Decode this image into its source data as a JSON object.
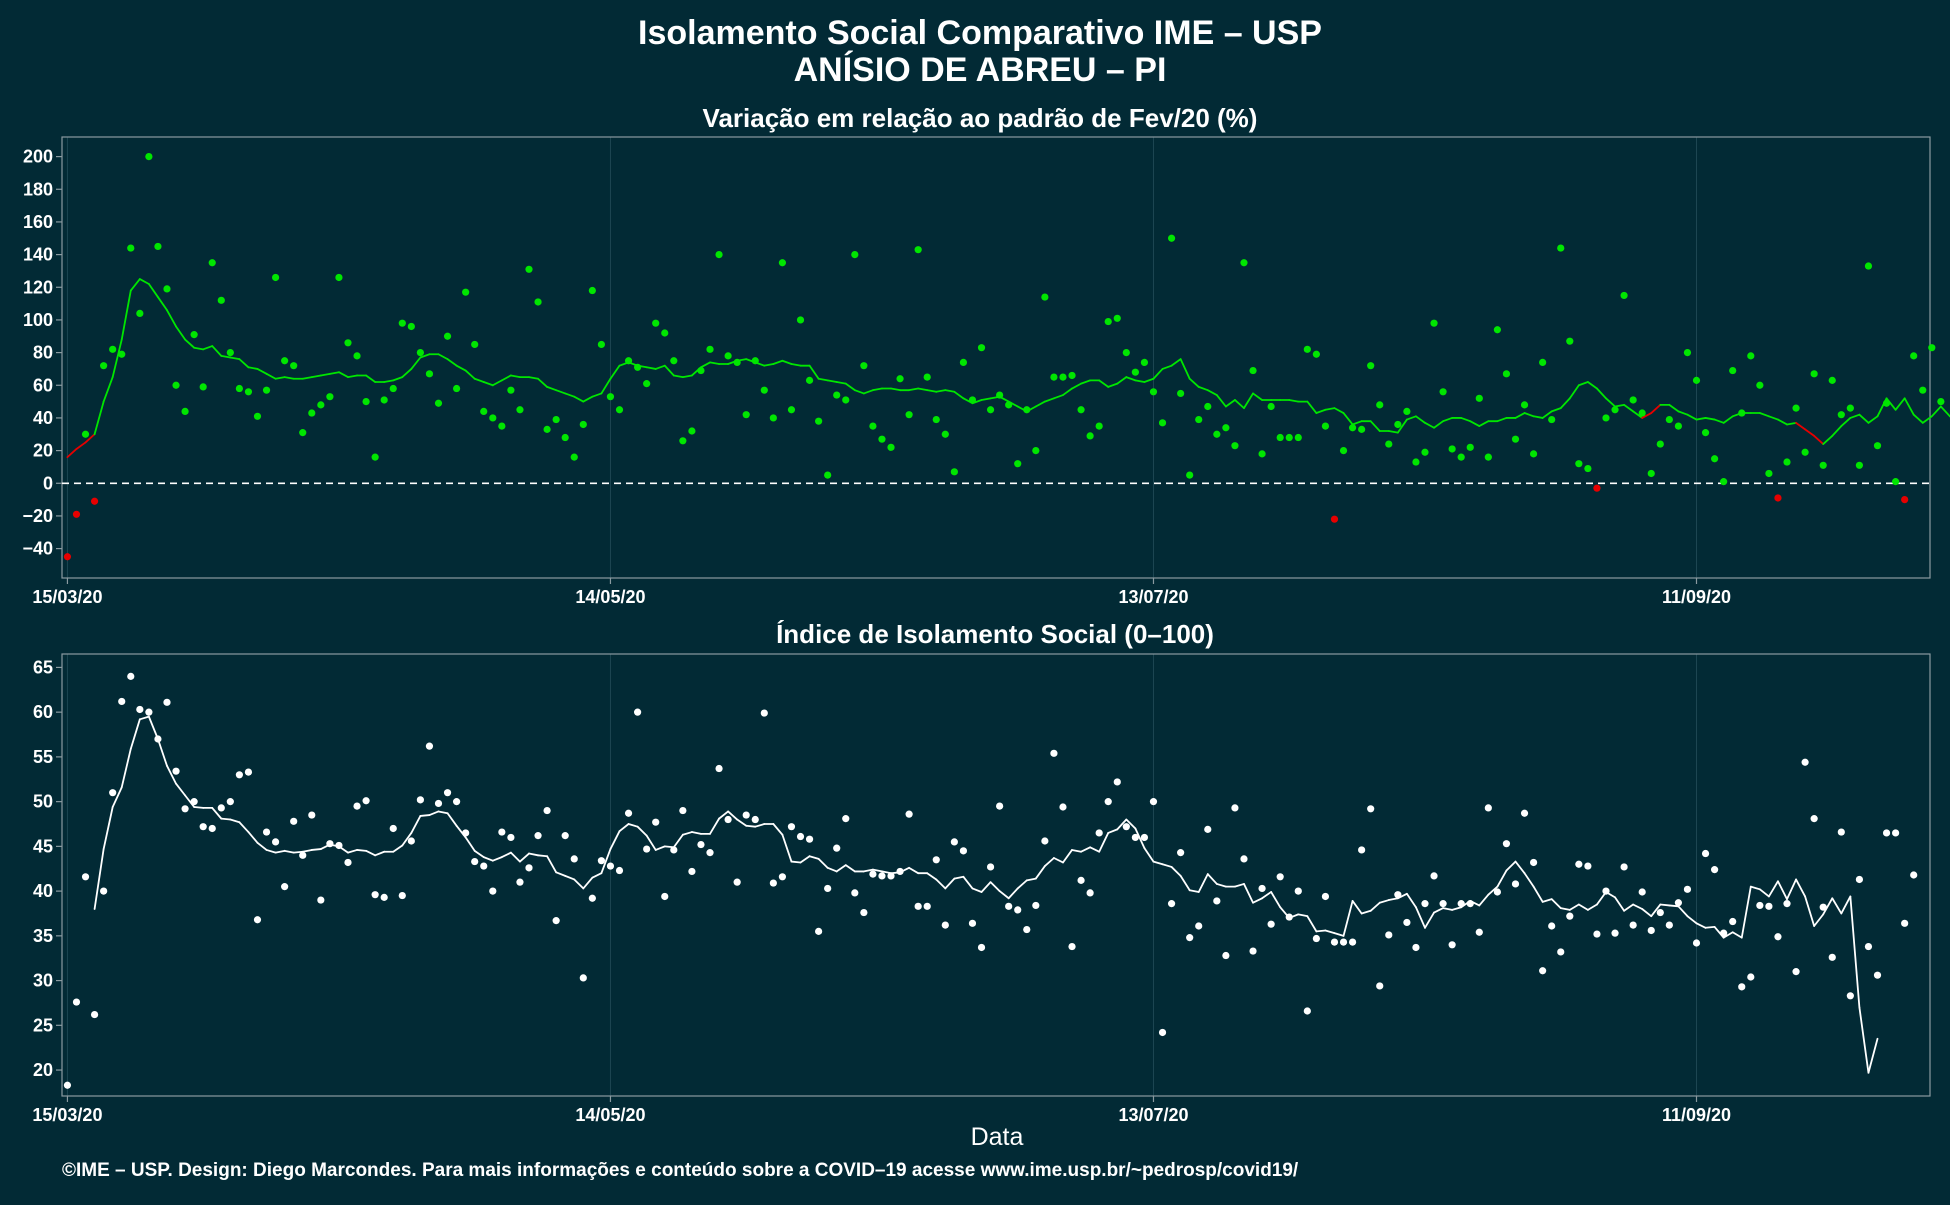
{
  "header": {
    "title_line1": "Isolamento Social Comparativo IME – USP",
    "title_line2": "ANÍSIO DE ABREU – PI"
  },
  "footer": {
    "credit": "©IME – USP. Design: Diego Marcondes. Para mais informações e conteúdo sobre a COVID–19 acesse www.ime.usp.br/~pedrosp/covid19/"
  },
  "colors": {
    "background": "#022a35",
    "panel_border": "#8a9aa0",
    "grid": "#1d4652",
    "positive": "#00e600",
    "negative": "#e60000",
    "index": "#ffffff"
  },
  "chart_data": [
    {
      "type": "scatter",
      "title": "Variação em relação ao padrão de Fev/20 (%)",
      "xlabel": "",
      "ylabel": "",
      "x_start": "15/03/20",
      "x_tick_labels": [
        "15/03/20",
        "14/05/20",
        "13/07/20",
        "11/09/20"
      ],
      "x_tick_day_offsets": [
        0,
        60,
        120,
        180
      ],
      "ylim": [
        -58,
        212
      ],
      "y_ticks": [
        -40,
        -20,
        0,
        20,
        40,
        60,
        80,
        100,
        120,
        140,
        160,
        180,
        200
      ],
      "reference_line": 0,
      "grid": true,
      "points": [
        -45,
        -19,
        30,
        -11,
        72,
        82,
        79,
        144,
        104,
        200,
        145,
        119,
        60,
        44,
        91,
        59,
        135,
        112,
        80,
        58,
        56,
        41,
        57,
        126,
        75,
        72,
        31,
        43,
        48,
        53,
        126,
        86,
        78,
        50,
        16,
        51,
        58,
        98,
        96,
        80,
        67,
        49,
        90,
        58,
        117,
        85,
        44,
        40,
        35,
        57,
        45,
        131,
        111,
        33,
        39,
        28,
        16,
        36,
        118,
        85,
        53,
        45,
        75,
        71,
        61,
        98,
        92,
        75,
        26,
        32,
        69,
        82,
        140,
        78,
        74,
        42,
        75,
        57,
        40,
        135,
        45,
        100,
        63,
        38,
        5,
        54,
        51,
        140,
        72,
        35,
        27,
        22,
        64,
        42,
        143,
        65,
        39,
        30,
        7,
        74,
        51,
        83,
        45,
        54,
        48,
        12,
        45,
        20,
        114,
        65,
        65,
        66,
        45,
        29,
        35,
        99,
        101,
        80,
        68,
        74,
        56,
        37,
        150,
        55,
        5,
        39,
        47,
        30,
        34,
        23,
        135,
        69,
        18,
        47,
        28,
        28,
        28,
        82,
        79,
        35,
        -22,
        20,
        34,
        33,
        72,
        48,
        24,
        36,
        44,
        13,
        19,
        98,
        56,
        21,
        16,
        22,
        52,
        16,
        94,
        67,
        27,
        48,
        18,
        74,
        39,
        144,
        87,
        12,
        9,
        -3,
        40,
        45,
        115,
        51,
        43,
        6,
        24,
        39,
        35,
        80,
        63,
        31,
        15,
        1,
        69,
        43,
        78,
        60,
        6,
        -9,
        13,
        46,
        19,
        67,
        11,
        63,
        42,
        46,
        11,
        133,
        23,
        49,
        1,
        -10,
        78,
        57,
        83,
        50
      ],
      "moving_average": [
        16,
        21,
        25,
        30,
        50,
        65,
        88,
        118,
        125,
        122,
        114,
        106,
        96,
        88,
        83,
        82,
        84,
        78,
        77,
        76,
        71,
        70,
        67,
        64,
        65,
        64,
        64,
        65,
        66,
        67,
        68,
        65,
        66,
        66,
        62,
        62,
        63,
        65,
        70,
        77,
        79,
        79,
        76,
        72,
        69,
        64,
        62,
        60,
        63,
        66,
        65,
        65,
        64,
        59,
        57,
        55,
        53,
        50,
        53,
        55,
        64,
        72,
        74,
        72,
        71,
        70,
        72,
        66,
        65,
        66,
        71,
        74,
        73,
        73,
        75,
        76,
        74,
        72,
        73,
        75,
        73,
        72,
        72,
        64,
        63,
        62,
        61,
        57,
        55,
        57,
        58,
        58,
        57,
        57,
        58,
        57,
        56,
        57,
        56,
        52,
        49,
        51,
        52,
        53,
        50,
        47,
        44,
        47,
        50,
        52,
        54,
        58,
        61,
        63,
        63,
        59,
        61,
        65,
        63,
        62,
        64,
        70,
        72,
        76,
        64,
        59,
        57,
        54,
        47,
        51,
        46,
        55,
        51,
        51,
        51,
        51,
        50,
        50,
        43,
        45,
        46,
        43,
        36,
        38,
        38,
        32,
        32,
        31,
        39,
        41,
        37,
        34,
        38,
        40,
        40,
        38,
        35,
        38,
        38,
        40,
        40,
        43,
        41,
        40,
        44,
        46,
        52,
        60,
        62,
        58,
        52,
        47,
        48,
        44,
        40,
        43,
        48,
        48,
        44,
        42,
        39,
        40,
        39,
        37,
        41,
        43,
        43,
        43,
        41,
        39,
        36,
        37,
        33,
        29,
        24,
        29,
        35,
        40,
        42,
        37,
        41,
        52,
        45,
        52,
        42,
        37,
        41,
        47,
        41,
        44
      ]
    },
    {
      "type": "scatter",
      "title": "Índice de Isolamento Social (0–100)",
      "xlabel": "Data",
      "ylabel": "",
      "x_start": "15/03/20",
      "x_tick_labels": [
        "15/03/20",
        "14/05/20",
        "13/07/20",
        "11/09/20"
      ],
      "x_tick_day_offsets": [
        0,
        60,
        120,
        180
      ],
      "ylim": [
        17.1,
        66.5
      ],
      "y_ticks": [
        20,
        25,
        30,
        35,
        40,
        45,
        50,
        55,
        60,
        65
      ],
      "grid": true,
      "points": [
        18.3,
        27.6,
        41.6,
        26.2,
        40.0,
        51.0,
        61.2,
        64.0,
        60.3,
        60.0,
        57.0,
        61.1,
        53.4,
        49.2,
        50.0,
        47.2,
        47.0,
        49.3,
        50.0,
        53.0,
        53.3,
        36.8,
        46.6,
        45.5,
        40.5,
        47.8,
        44.0,
        48.5,
        39.0,
        45.3,
        45.1,
        43.2,
        49.5,
        50.1,
        39.6,
        39.3,
        47.0,
        39.5,
        45.6,
        50.2,
        56.2,
        49.8,
        51.0,
        50.0,
        46.5,
        43.3,
        42.8,
        40.0,
        46.6,
        46.0,
        41.0,
        42.6,
        46.2,
        49.0,
        36.7,
        46.2,
        43.6,
        30.3,
        39.2,
        43.4,
        42.8,
        42.3,
        48.7,
        60.0,
        44.7,
        47.7,
        39.4,
        44.6,
        49.0,
        42.2,
        45.2,
        44.3,
        53.7,
        48.0,
        41.0,
        48.5,
        48.0,
        59.9,
        40.9,
        41.6,
        47.2,
        46.1,
        45.8,
        35.5,
        40.3,
        44.8,
        48.1,
        39.8,
        37.6,
        41.9,
        41.7,
        41.7,
        42.2,
        48.6,
        38.3,
        38.3,
        43.5,
        36.2,
        45.5,
        44.5,
        36.4,
        33.7,
        42.7,
        49.5,
        38.3,
        37.9,
        35.7,
        38.4,
        45.6,
        55.4,
        49.4,
        33.8,
        41.2,
        39.8,
        46.5,
        50.0,
        52.2,
        47.2,
        46.0,
        46.0,
        50.0,
        24.2,
        38.6,
        44.3,
        34.8,
        36.1,
        46.9,
        38.9,
        32.8,
        49.3,
        43.6,
        33.3,
        40.3,
        36.3,
        41.6,
        37.1,
        40.0,
        26.6,
        34.7,
        39.4,
        34.3,
        34.3,
        34.3,
        44.6,
        49.2,
        29.4,
        35.1,
        39.6,
        36.5,
        33.7,
        38.6,
        41.7,
        38.6,
        34.0,
        38.6,
        38.6,
        35.4,
        49.3,
        39.9,
        45.3,
        40.8,
        48.7,
        43.2,
        31.1,
        36.1,
        33.2,
        37.2,
        43.0,
        42.8,
        35.2,
        40.0,
        35.3,
        42.7,
        36.2,
        39.9,
        35.6,
        37.6,
        36.2,
        38.7,
        40.2,
        34.2,
        44.2,
        42.4,
        35.3,
        36.6,
        29.3,
        30.4,
        38.4,
        38.3,
        34.9,
        38.6,
        31.0,
        54.4,
        48.1,
        38.2,
        32.6,
        46.6,
        28.3,
        41.3,
        33.8,
        30.6,
        46.5,
        46.5,
        36.4,
        41.8
      ],
      "moving_average": [
        null,
        null,
        null,
        38.0,
        44.7,
        49.4,
        51.6,
        55.9,
        59.2,
        59.5,
        57.0,
        54.0,
        52.0,
        50.7,
        49.4,
        49.3,
        49.3,
        48.1,
        48.0,
        47.7,
        46.6,
        45.4,
        44.6,
        44.3,
        44.5,
        44.3,
        44.4,
        44.6,
        44.7,
        45.2,
        45.0,
        44.3,
        44.6,
        44.5,
        44.0,
        44.4,
        44.4,
        45.1,
        46.5,
        48.4,
        48.5,
        48.9,
        48.7,
        47.3,
        46.0,
        44.5,
        43.8,
        43.4,
        43.8,
        44.3,
        43.3,
        44.2,
        44.0,
        43.9,
        42.1,
        41.7,
        41.3,
        40.3,
        41.5,
        42.0,
        44.7,
        46.7,
        47.5,
        47.2,
        46.2,
        44.6,
        45.0,
        44.9,
        46.3,
        46.6,
        46.4,
        46.4,
        48.1,
        48.9,
        48.0,
        47.3,
        47.2,
        47.5,
        47.5,
        46.3,
        43.3,
        43.2,
        43.9,
        43.6,
        42.6,
        42.2,
        42.9,
        42.2,
        42.2,
        42.4,
        42.2,
        42.0,
        42.1,
        42.6,
        42.0,
        42.0,
        41.3,
        40.3,
        41.4,
        41.6,
        40.3,
        39.9,
        41.0,
        40.0,
        39.2,
        40.3,
        41.2,
        41.4,
        42.8,
        43.7,
        43.2,
        44.6,
        44.4,
        44.9,
        44.4,
        46.5,
        46.9,
        48.0,
        47.0,
        44.8,
        43.3,
        43.0,
        42.7,
        41.7,
        40.1,
        39.9,
        41.9,
        40.8,
        40.5,
        40.5,
        40.8,
        38.7,
        39.2,
        39.9,
        38.2,
        37.0,
        37.4,
        37.2,
        35.5,
        35.6,
        35.3,
        35.0,
        38.9,
        37.5,
        37.8,
        38.7,
        39.0,
        39.2,
        39.7,
        38.2,
        35.9,
        37.6,
        38.1,
        37.9,
        38.2,
        38.9,
        38.4,
        39.6,
        40.5,
        42.3,
        43.3,
        42.0,
        40.5,
        38.8,
        39.1,
        38.1,
        37.9,
        38.5,
        37.9,
        38.5,
        39.9,
        39.3,
        37.8,
        38.5,
        38.0,
        37.2,
        38.5,
        38.4,
        38.3,
        37.2,
        36.4,
        35.9,
        36.0,
        34.8,
        35.4,
        34.8,
        40.5,
        40.2,
        39.4,
        41.1,
        39.1,
        41.3,
        39.4,
        36.1,
        37.4,
        39.2,
        37.5,
        39.4,
        27.0,
        19.7,
        23.5
      ]
    }
  ]
}
